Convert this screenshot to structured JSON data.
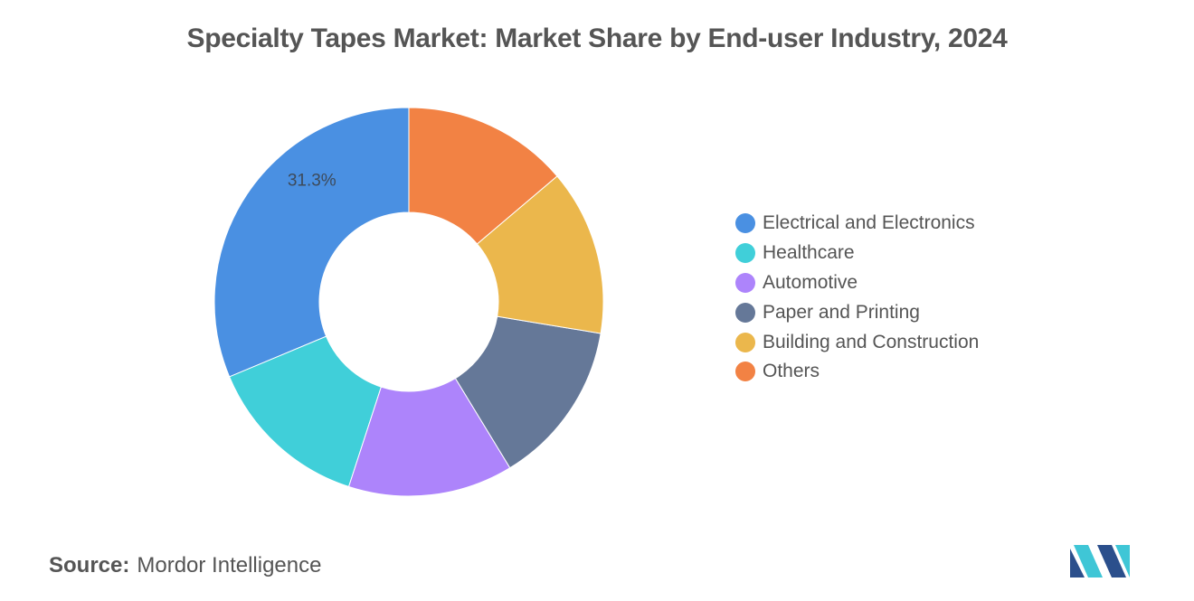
{
  "title": "Specialty Tapes Market: Market Share by End-user Industry, 2024",
  "chart_data": {
    "type": "pie",
    "donut": true,
    "slices": [
      {
        "name": "Electrical and Electronics",
        "value": 31.3,
        "color": "#4a90e2",
        "label": "31.3%"
      },
      {
        "name": "Healthcare",
        "value": 13.7,
        "color": "#40cfd9",
        "label": ""
      },
      {
        "name": "Automotive",
        "value": 13.7,
        "color": "#ad84fb",
        "label": ""
      },
      {
        "name": "Paper and Printing",
        "value": 13.7,
        "color": "#657898",
        "label": ""
      },
      {
        "name": "Building and Construction",
        "value": 13.8,
        "color": "#ebb74c",
        "label": ""
      },
      {
        "name": "Others",
        "value": 13.8,
        "color": "#f28244",
        "label": ""
      }
    ],
    "start_angle_deg": 0,
    "direction": "counterclockwise",
    "legend_position": "right"
  },
  "source": {
    "label": "Source:",
    "text": "Mordor Intelligence"
  },
  "logo": {
    "icon": "mordor-intelligence-logo",
    "colors": [
      "#2b4f8c",
      "#3fc6d6"
    ]
  }
}
